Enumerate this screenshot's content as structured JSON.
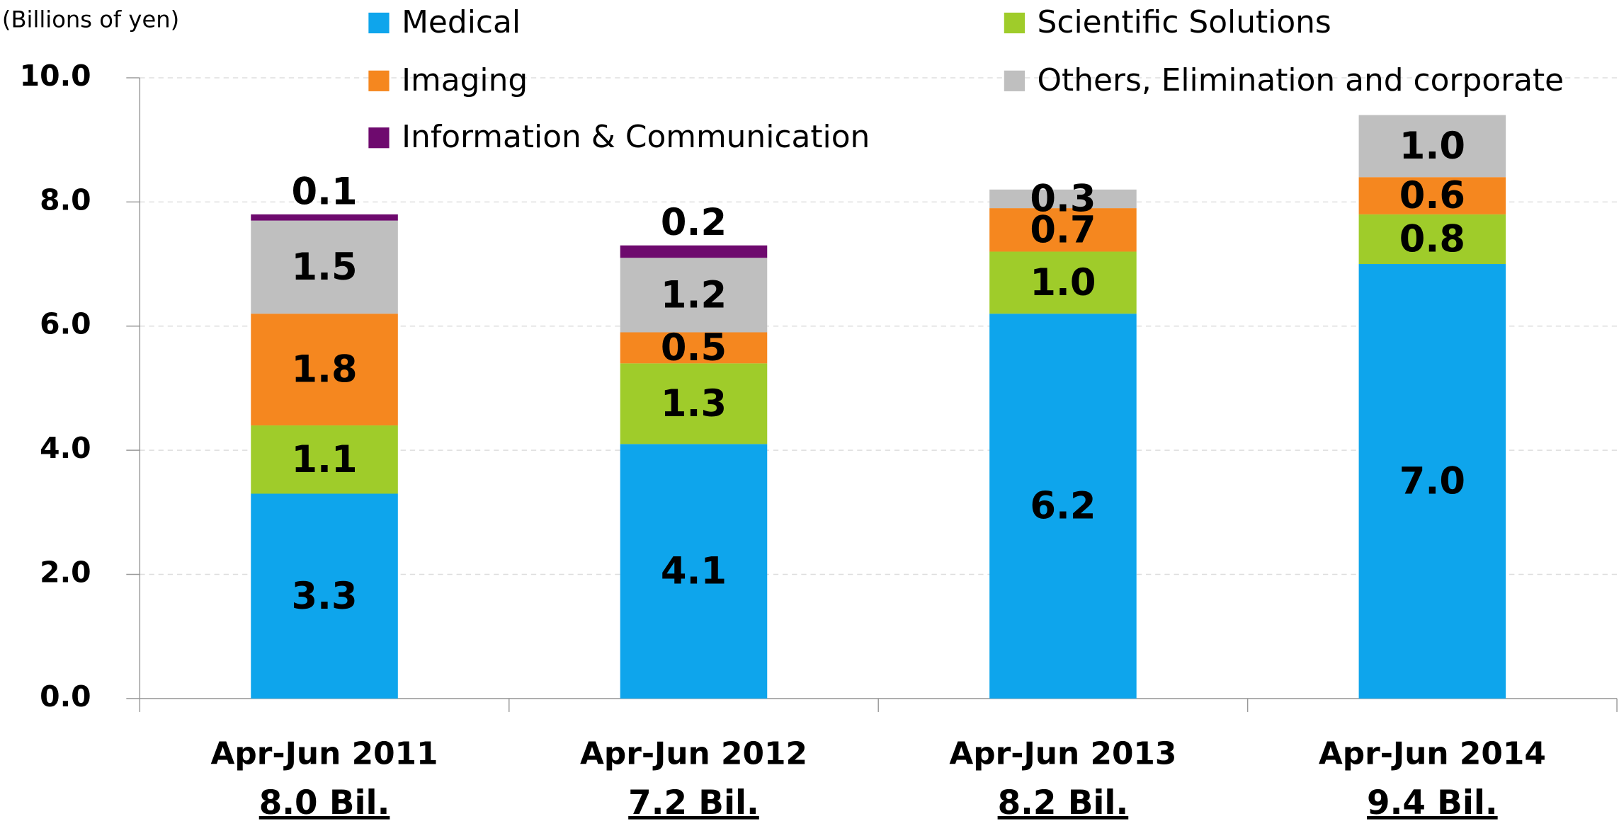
{
  "chart_data": {
    "type": "stacked_bar",
    "y_label": "(Billions of yen)",
    "categories": [
      "Apr-Jun 2011",
      "Apr-Jun 2012",
      "Apr-Jun 2013",
      "Apr-Jun 2014"
    ],
    "totals": [
      "8.0 Bil.",
      "7.2 Bil.",
      "8.2 Bil.",
      "9.4 Bil."
    ],
    "ylim": [
      0,
      10
    ],
    "yticks": [
      {
        "value": 0,
        "label": "0.0"
      },
      {
        "value": 2,
        "label": "2.0"
      },
      {
        "value": 4,
        "label": "4.0"
      },
      {
        "value": 6,
        "label": "6.0"
      },
      {
        "value": 8,
        "label": "8.0"
      },
      {
        "value": 10,
        "label": "10.0"
      }
    ],
    "grid": true,
    "series": [
      {
        "name": "Medical",
        "color": "#0ea5ec",
        "values": [
          3.3,
          4.1,
          6.2,
          7.0
        ],
        "value_labels": [
          "3.3",
          "4.1",
          "6.2",
          "7.0"
        ]
      },
      {
        "name": "Scientific Solutions",
        "color": "#9fcc2a",
        "values": [
          1.1,
          1.3,
          1.0,
          0.8
        ],
        "value_labels": [
          "1.1",
          "1.3",
          "1.0",
          "0.8"
        ]
      },
      {
        "name": "Imaging",
        "color": "#f5871f",
        "values": [
          1.8,
          0.5,
          0.7,
          0.6
        ],
        "value_labels": [
          "1.8",
          "0.5",
          "0.7",
          "0.6"
        ]
      },
      {
        "name": "Others, Elimination and corporate",
        "color": "#bfbfbf",
        "values": [
          1.5,
          1.2,
          0.3,
          1.0
        ],
        "value_labels": [
          "1.5",
          "1.2",
          "0.3",
          "1.0"
        ]
      },
      {
        "name": "Information & Communication",
        "color": "#6e0a6e",
        "values": [
          0.1,
          0.2,
          null,
          null
        ],
        "value_labels": [
          "0.1",
          "0.2",
          null,
          null
        ]
      }
    ]
  }
}
